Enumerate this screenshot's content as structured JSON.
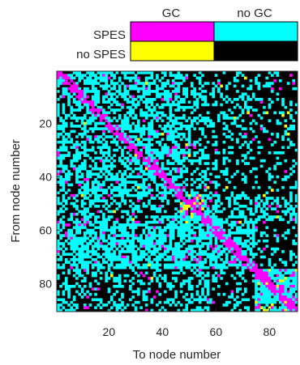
{
  "legend": {
    "col_headers": [
      "GC",
      "no GC"
    ],
    "row_headers": [
      "SPES",
      "no SPES"
    ],
    "cells": [
      {
        "row": 0,
        "col": 0,
        "color": "#ff00ff",
        "meaning": "GC + SPES"
      },
      {
        "row": 0,
        "col": 1,
        "color": "#00ffff",
        "meaning": "no GC + SPES"
      },
      {
        "row": 1,
        "col": 0,
        "color": "#ffff00",
        "meaning": "GC + no SPES"
      },
      {
        "row": 1,
        "col": 1,
        "color": "#000000",
        "meaning": "no GC + no SPES"
      }
    ]
  },
  "chart_data": {
    "type": "heatmap",
    "xlabel": "To node number",
    "ylabel": "From node number",
    "n_nodes": 90,
    "xlim": [
      0.5,
      90.5
    ],
    "ylim": [
      0.5,
      90.5
    ],
    "x_ticks": [
      20,
      40,
      60,
      80
    ],
    "y_ticks": [
      20,
      40,
      60,
      80
    ],
    "y_inverted": true,
    "categories": {
      "0": "no GC, no SPES",
      "1": "no GC, SPES",
      "2": "GC, SPES",
      "3": "GC, no SPES"
    },
    "category_colors": {
      "0": "#000000",
      "1": "#00ffff",
      "2": "#ff00ff",
      "3": "#ffff00"
    },
    "blocks_approx": [
      {
        "from": [
          1,
          47
        ],
        "to": [
          1,
          47
        ],
        "description": "dense mixed cyan block with magenta near diagonal"
      },
      {
        "from": [
          47,
          57
        ],
        "to": [
          47,
          57
        ],
        "description": "dense cyan/magenta block with yellow clusters"
      },
      {
        "from": [
          57,
          74
        ],
        "to": [
          1,
          74
        ],
        "description": "mostly cyan rows with magenta diagonal"
      },
      {
        "from": [
          75,
          90
        ],
        "to": [
          75,
          90
        ],
        "description": "dense cyan/magenta block with yellow clusters"
      },
      {
        "from": [
          75,
          90
        ],
        "to": [
          1,
          35
        ],
        "description": "sparse cyan"
      }
    ]
  }
}
